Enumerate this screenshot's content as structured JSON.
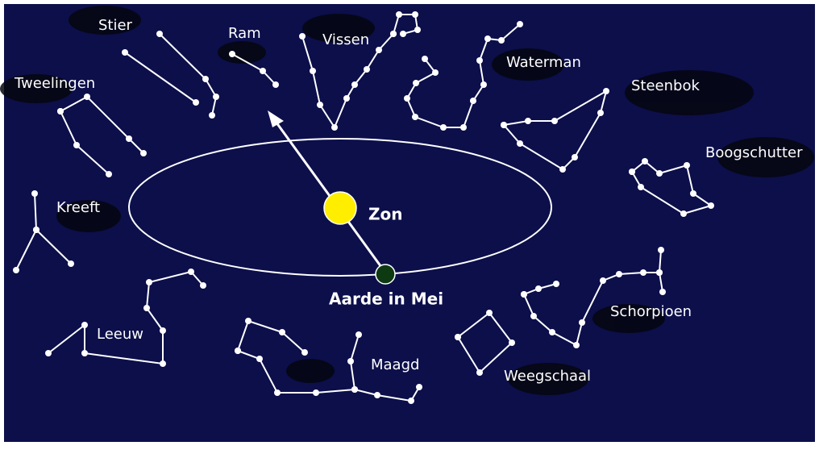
{
  "constellations": [
    {
      "name": "Stier"
    },
    {
      "name": "Ram"
    },
    {
      "name": "Vissen"
    },
    {
      "name": "Waterman"
    },
    {
      "name": "Steenbok"
    },
    {
      "name": "Boogschutter"
    },
    {
      "name": "Tweelingen"
    },
    {
      "name": "Kreeft"
    },
    {
      "name": "Leeuw"
    },
    {
      "name": "Maagd"
    },
    {
      "name": "Weegschaal"
    },
    {
      "name": "Schorpioen"
    }
  ],
  "sun": {
    "label": "Zon"
  },
  "earth": {
    "label": "Aarde in Mei"
  }
}
